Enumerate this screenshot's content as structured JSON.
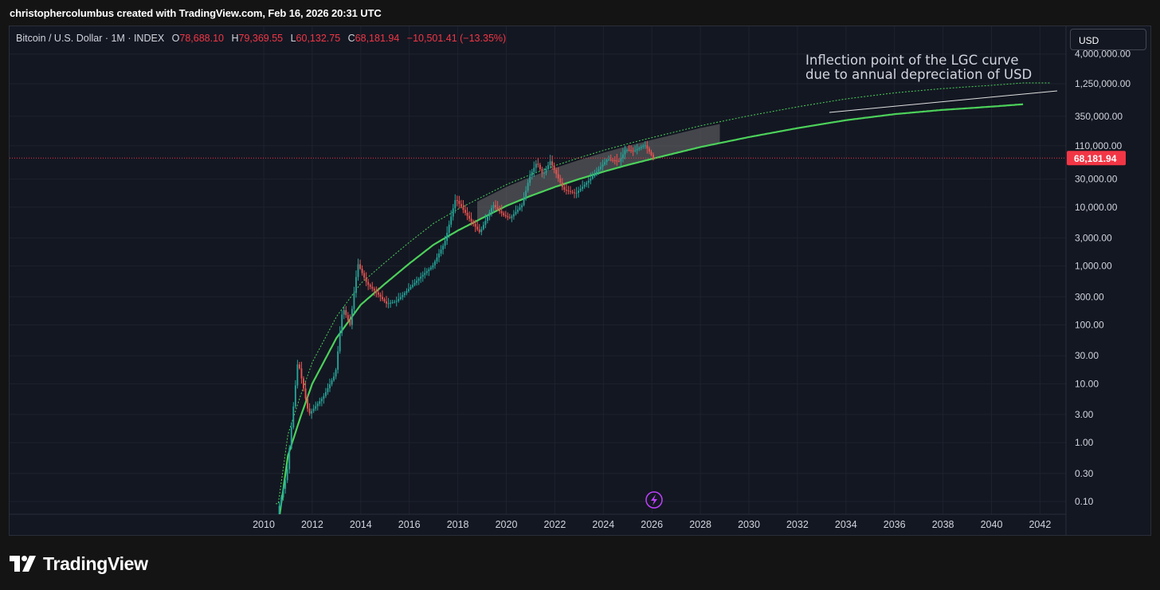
{
  "header": {
    "credit": "christophercolumbus created with TradingView.com, Feb 16, 2026 20:31 UTC"
  },
  "legend": {
    "symbol": "Bitcoin / U.S. Dollar · 1M · INDEX",
    "open_label": "O",
    "open": "78,688.10",
    "high_label": "H",
    "high": "79,369.55",
    "low_label": "L",
    "low": "60,132.75",
    "close_label": "C",
    "close": "68,181.94",
    "change": "−10,501.41 (−13.35%)"
  },
  "currency_button": "USD",
  "brand": {
    "name": "TradingView",
    "icon": "tradingview-logo-icon"
  },
  "colors": {
    "background": "#131722",
    "frame": "#141414",
    "grid": "#1e222d",
    "up": "#26a69a",
    "down": "#ef5350",
    "curve": "#4cd15a",
    "band": "#6e6e6e",
    "price_badge": "#f23645",
    "text": "#d1d4dc"
  },
  "chart_data": {
    "type": "candlestick",
    "y_scale": "log",
    "x_ticks": [
      "2010",
      "2012",
      "2014",
      "2016",
      "2018",
      "2020",
      "2022",
      "2024",
      "2026",
      "2028",
      "2030",
      "2032",
      "2034",
      "2036",
      "2038",
      "2040",
      "2042"
    ],
    "y_ticks": [
      {
        "value": 4000000,
        "label": "4,000,000.00"
      },
      {
        "value": 1250000,
        "label": "1,250,000.00"
      },
      {
        "value": 350000,
        "label": "350,000.00"
      },
      {
        "value": 110000,
        "label": "110,000.00"
      },
      {
        "value": 30000,
        "label": "30,000.00"
      },
      {
        "value": 10000,
        "label": "10,000.00"
      },
      {
        "value": 3000,
        "label": "3,000.00"
      },
      {
        "value": 1000,
        "label": "1,000.00"
      },
      {
        "value": 300,
        "label": "300.00"
      },
      {
        "value": 100,
        "label": "100.00"
      },
      {
        "value": 30,
        "label": "30.00"
      },
      {
        "value": 10,
        "label": "10.00"
      },
      {
        "value": 3,
        "label": "3.00"
      },
      {
        "value": 1,
        "label": "1.00"
      },
      {
        "value": 0.3,
        "label": "0.30"
      },
      {
        "value": 0.1,
        "label": "0.10"
      }
    ],
    "last_price": {
      "value": 68181.94,
      "label": "68,181.94"
    },
    "annotation": {
      "lines": [
        "Inflection point of the LGC curve",
        "due to annual depreciation of USD"
      ]
    },
    "price_points": [
      [
        2010.6,
        0.06
      ],
      [
        2011.0,
        0.3
      ],
      [
        2011.45,
        25
      ],
      [
        2011.9,
        3
      ],
      [
        2012.5,
        6
      ],
      [
        2013.0,
        15
      ],
      [
        2013.3,
        200
      ],
      [
        2013.6,
        100
      ],
      [
        2013.92,
        1100
      ],
      [
        2014.3,
        500
      ],
      [
        2014.7,
        350
      ],
      [
        2015.1,
        230
      ],
      [
        2015.5,
        250
      ],
      [
        2016.0,
        400
      ],
      [
        2016.5,
        650
      ],
      [
        2017.0,
        1000
      ],
      [
        2017.5,
        2500
      ],
      [
        2017.95,
        14000
      ],
      [
        2018.5,
        6500
      ],
      [
        2018.95,
        3700
      ],
      [
        2019.5,
        11000
      ],
      [
        2019.95,
        7200
      ],
      [
        2020.2,
        6500
      ],
      [
        2020.7,
        11000
      ],
      [
        2021.0,
        33000
      ],
      [
        2021.3,
        58000
      ],
      [
        2021.55,
        35000
      ],
      [
        2021.85,
        60000
      ],
      [
        2022.4,
        20000
      ],
      [
        2022.9,
        17000
      ],
      [
        2023.5,
        30000
      ],
      [
        2024.2,
        65000
      ],
      [
        2024.7,
        60000
      ],
      [
        2024.95,
        95000
      ],
      [
        2025.3,
        90000
      ],
      [
        2025.75,
        115000
      ],
      [
        2026.1,
        68181.94
      ]
    ],
    "regression_curve": [
      [
        2010.6,
        0.04
      ],
      [
        2011.0,
        0.6
      ],
      [
        2011.5,
        2.6
      ],
      [
        2012.0,
        10
      ],
      [
        2013.0,
        60
      ],
      [
        2014.0,
        220
      ],
      [
        2015.0,
        500
      ],
      [
        2016.0,
        1100
      ],
      [
        2017.0,
        2300
      ],
      [
        2018.0,
        4000
      ],
      [
        2019.0,
        6500
      ],
      [
        2020.0,
        10500
      ],
      [
        2021.0,
        15500
      ],
      [
        2022.0,
        22000
      ],
      [
        2023.0,
        30000
      ],
      [
        2024.0,
        40000
      ],
      [
        2025.0,
        52000
      ],
      [
        2026.0,
        66000
      ],
      [
        2028.0,
        105000
      ],
      [
        2030.0,
        155000
      ],
      [
        2032.0,
        220000
      ],
      [
        2034.0,
        300000
      ],
      [
        2036.0,
        380000
      ],
      [
        2038.0,
        450000
      ],
      [
        2040.0,
        510000
      ],
      [
        2041.3,
        560000
      ]
    ]
  }
}
